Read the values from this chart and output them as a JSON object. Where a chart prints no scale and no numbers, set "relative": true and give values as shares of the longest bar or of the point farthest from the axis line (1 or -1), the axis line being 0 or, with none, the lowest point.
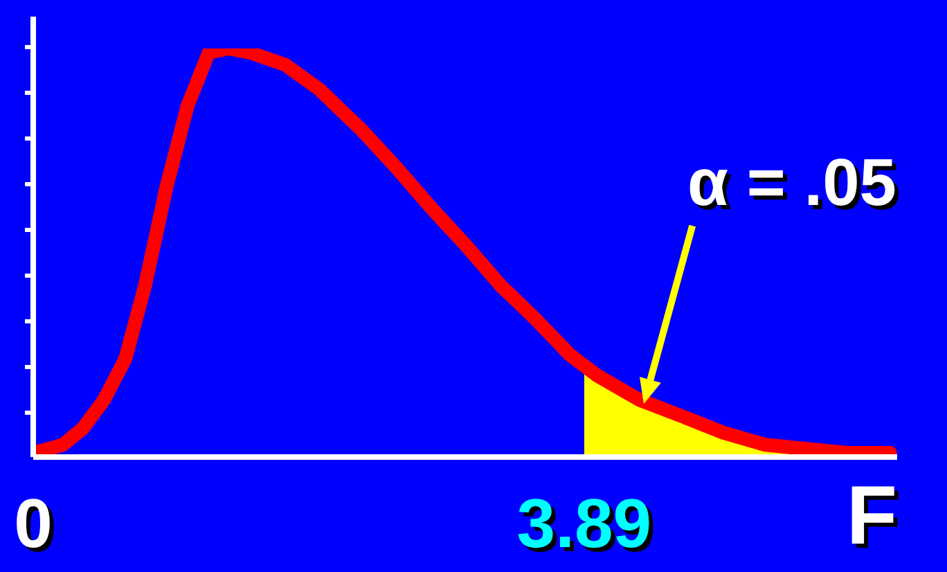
{
  "chart_data": {
    "type": "line",
    "relative": true,
    "xlabel": "F",
    "xlim": [
      0,
      6.1
    ],
    "xticks": [
      0,
      3.89
    ],
    "tick_labels": "x",
    "legend": false,
    "series": [
      {
        "color": "#ff0000",
        "x": [
          0,
          0.21,
          0.35,
          0.5,
          0.65,
          0.79,
          0.94,
          1.09,
          1.24,
          1.38,
          1.53,
          1.78,
          2.02,
          2.32,
          2.56,
          2.81,
          3.05,
          3.3,
          3.54,
          3.79,
          3.98,
          4.28,
          4.58,
          4.87,
          5.17,
          5.46,
          5.76,
          6.05
        ],
        "values": [
          0.01,
          0.03,
          0.07,
          0.14,
          0.24,
          0.42,
          0.66,
          0.86,
          0.99,
          1,
          0.99,
          0.96,
          0.9,
          0.8,
          0.71,
          0.61,
          0.52,
          0.42,
          0.34,
          0.25,
          0.2,
          0.14,
          0.1,
          0.06,
          0.03,
          0.02,
          0.01,
          0.01
        ]
      },
      {
        "type": "area",
        "color": "#ffff00",
        "x": [
          3.89,
          3.98,
          4.28,
          4.58,
          4.87,
          5.17,
          5.46,
          5.76,
          6.05
        ],
        "values": [
          0.22,
          0.2,
          0.14,
          0.1,
          0.06,
          0.03,
          0.02,
          0.01,
          0.01
        ]
      }
    ],
    "annotations": [
      {
        "text": "α = .05",
        "x": 4.31,
        "y": 0.13
      }
    ]
  }
}
